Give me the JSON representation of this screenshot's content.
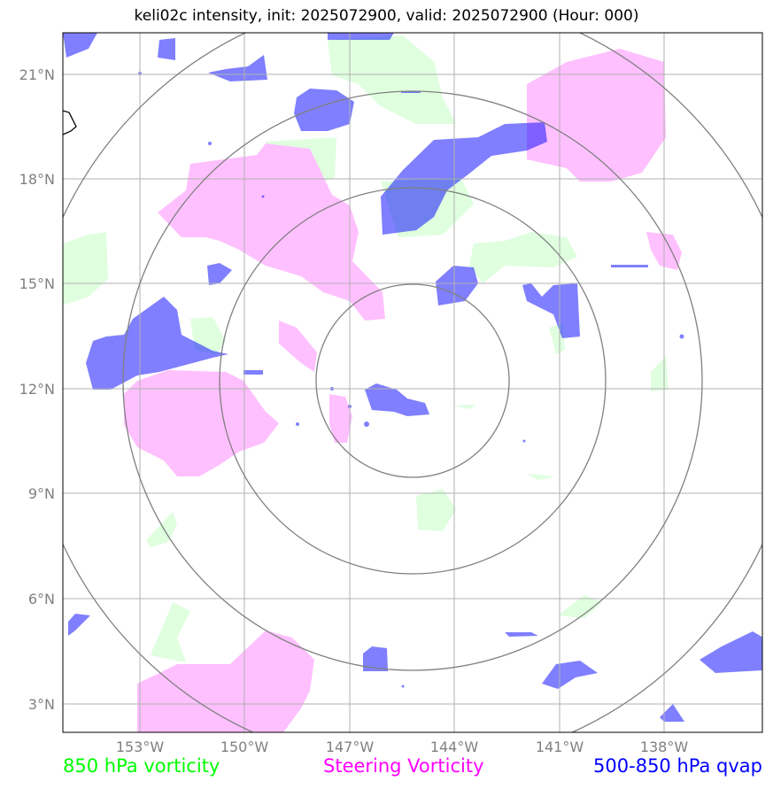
{
  "title": "keli02c intensity, init: 2025072900, valid: 2025072900 (Hour: 000)",
  "lat_labels": [
    "21°N",
    "18°N",
    "15°N",
    "12°N",
    "9°N",
    "6°N",
    "3°N"
  ],
  "lon_labels": [
    "153°W",
    "150°W",
    "147°W",
    "144°W",
    "141°W",
    "138°W"
  ],
  "legend": {
    "vort850": {
      "label": "850 hPa vorticity",
      "color": "#00ff00"
    },
    "steering": {
      "label": "Steering Vorticity",
      "color": "#ff00ff"
    },
    "qvap": {
      "label": "500-850 hPa qvap",
      "color": "#0000ff"
    }
  },
  "colors": {
    "vort850_fill": "#dfffdf",
    "steering_fill": "#ffc0ff",
    "qvap_fill": "#7f7fff",
    "grid": "#b0b0b0",
    "rings": "#808080"
  }
}
